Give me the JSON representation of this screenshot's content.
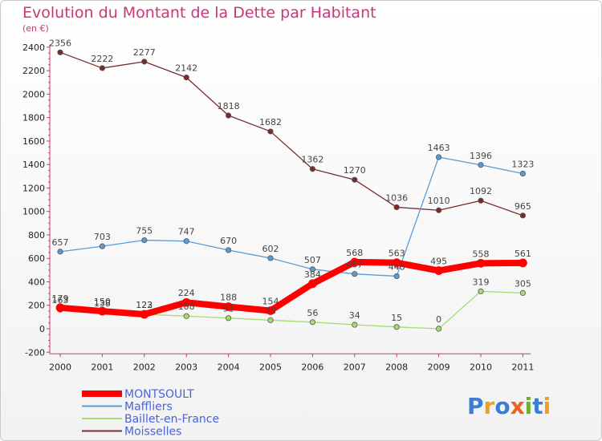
{
  "chart_data": {
    "type": "line",
    "title": "Evolution du Montant de la Dette par Habitant",
    "subtitle": "(en €)",
    "categories": [
      "2000",
      "2001",
      "2002",
      "2003",
      "2004",
      "2005",
      "2006",
      "2007",
      "2008",
      "2009",
      "2010",
      "2011"
    ],
    "y_ticks": [
      -200,
      0,
      200,
      400,
      600,
      800,
      1000,
      1200,
      1400,
      1600,
      1800,
      2000,
      2200,
      2400
    ],
    "ylim": [
      -200,
      2400
    ],
    "grid": false,
    "legend_position": "bottom-left",
    "series": [
      {
        "name": "Moisselles",
        "color": "#7a2a2a",
        "width": 1.3,
        "values": [
          2356,
          2222,
          2277,
          2142,
          1818,
          1682,
          1362,
          1270,
          1036,
          1010,
          1092,
          965
        ]
      },
      {
        "name": "Maffliers",
        "color": "#5b9bd5",
        "width": 1.3,
        "values": [
          657,
          703,
          755,
          747,
          670,
          602,
          507,
          467,
          448,
          1463,
          1396,
          1323
        ]
      },
      {
        "name": "Baillet-en-France",
        "color": "#a6db72",
        "width": 1.3,
        "values": [
          163,
          138,
          122,
          108,
          91,
          73,
          56,
          34,
          15,
          0,
          319,
          305
        ]
      },
      {
        "name": "MONTSOULT",
        "color": "#ff0000",
        "width": 8,
        "values": [
          179,
          150,
          123,
          224,
          188,
          154,
          384,
          568,
          563,
          495,
          558,
          561
        ]
      }
    ],
    "data_labels": [
      {
        "series": 0,
        "labels": [
          "2356",
          "2222",
          "2277",
          "2142",
          "1818",
          "1682",
          "1362",
          "1270",
          "1036",
          "1010",
          "1092",
          "965"
        ]
      },
      {
        "series": 1,
        "labels": [
          "657",
          "703",
          "755",
          "747",
          "670",
          "602",
          "507",
          "467",
          "448",
          "1463",
          "1396",
          "1323"
        ]
      },
      {
        "series": 2,
        "labels": [
          "163",
          "138",
          "122",
          "108",
          "91",
          "73",
          "56",
          "34",
          "15",
          "0",
          "319",
          "305"
        ]
      },
      {
        "series": 3,
        "labels": [
          "179",
          "150",
          "123",
          "224",
          "188",
          "154",
          "384",
          "568",
          "563",
          "495",
          "558",
          "561"
        ]
      }
    ],
    "legend": [
      "MONTSOULT",
      "Maffliers",
      "Baillet-en-France",
      "Moisselles"
    ]
  },
  "logo": {
    "text": "Proxiti",
    "colors": [
      "#3a7fd5",
      "#f0a020",
      "#3a7fd5",
      "#f06020",
      "#70b030",
      "#3a7fd5",
      "#f0a020"
    ]
  }
}
